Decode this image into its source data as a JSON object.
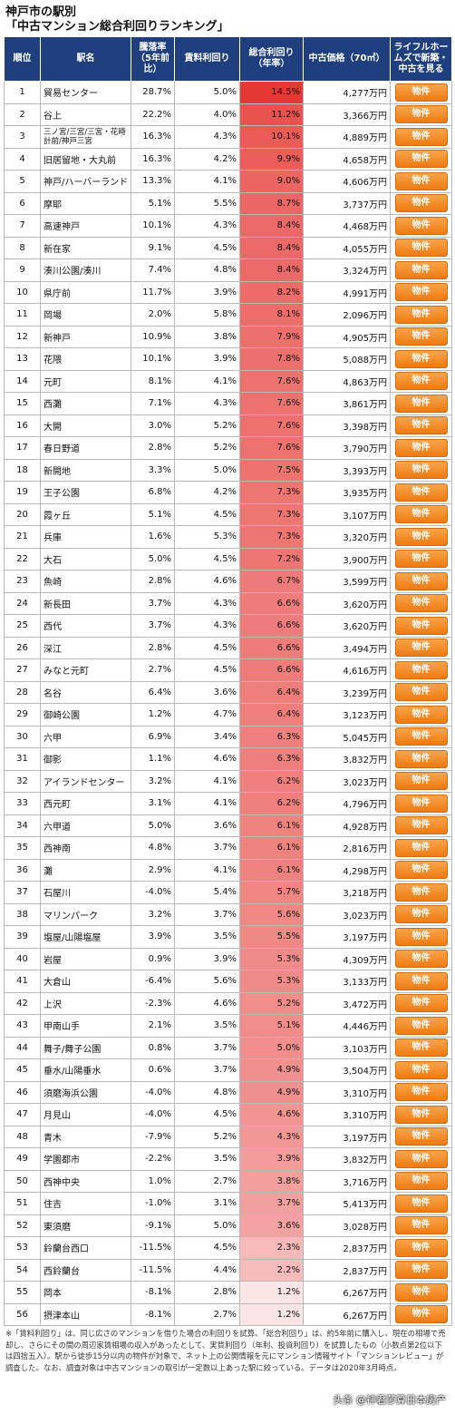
{
  "title": {
    "line1": "神戸市の駅別",
    "line2": "「中古マンション総合利回りランキング」"
  },
  "headers": {
    "rank": "順位",
    "name": "駅名",
    "decline": "騰落率（5年前比）",
    "rent": "賃料利回り",
    "total": "総合利回り（年率）",
    "price": "中古価格（70㎡）",
    "link": "ライフルホームズで新築・中古を見る"
  },
  "button_label": "物件",
  "colors": {
    "header": "#1f3f7e",
    "button": "#ee7a12"
  },
  "rows": [
    {
      "rank": "1",
      "name": "貿易センター",
      "decline": "28.7%",
      "rent": "5.0%",
      "total": "14.5%",
      "price": "4,277万円"
    },
    {
      "rank": "2",
      "name": "谷上",
      "decline": "22.2%",
      "rent": "4.0%",
      "total": "11.2%",
      "price": "3,366万円"
    },
    {
      "rank": "3",
      "name": "三ノ宮/三宮/三宮・花時計前/神戸三宮",
      "decline": "16.3%",
      "rent": "4.3%",
      "total": "10.1%",
      "price": "4,889万円"
    },
    {
      "rank": "4",
      "name": "旧居留地・大丸前",
      "decline": "16.3%",
      "rent": "4.2%",
      "total": "9.9%",
      "price": "4,658万円"
    },
    {
      "rank": "5",
      "name": "神戸/ハーバーランド",
      "decline": "13.3%",
      "rent": "4.1%",
      "total": "9.0%",
      "price": "4,606万円"
    },
    {
      "rank": "6",
      "name": "摩耶",
      "decline": "5.1%",
      "rent": "5.5%",
      "total": "8.7%",
      "price": "3,737万円"
    },
    {
      "rank": "7",
      "name": "高速神戸",
      "decline": "10.1%",
      "rent": "4.3%",
      "total": "8.4%",
      "price": "4,468万円"
    },
    {
      "rank": "8",
      "name": "新在家",
      "decline": "9.1%",
      "rent": "4.5%",
      "total": "8.4%",
      "price": "4,055万円"
    },
    {
      "rank": "9",
      "name": "湊川公園/湊川",
      "decline": "7.4%",
      "rent": "4.8%",
      "total": "8.4%",
      "price": "3,324万円"
    },
    {
      "rank": "10",
      "name": "県庁前",
      "decline": "11.7%",
      "rent": "3.9%",
      "total": "8.2%",
      "price": "4,991万円"
    },
    {
      "rank": "11",
      "name": "岡場",
      "decline": "2.0%",
      "rent": "5.8%",
      "total": "8.1%",
      "price": "2,096万円"
    },
    {
      "rank": "12",
      "name": "新神戸",
      "decline": "10.9%",
      "rent": "3.8%",
      "total": "7.9%",
      "price": "4,905万円"
    },
    {
      "rank": "13",
      "name": "花隈",
      "decline": "10.1%",
      "rent": "3.9%",
      "total": "7.8%",
      "price": "5,088万円"
    },
    {
      "rank": "14",
      "name": "元町",
      "decline": "8.1%",
      "rent": "4.1%",
      "total": "7.6%",
      "price": "4,863万円"
    },
    {
      "rank": "15",
      "name": "西灘",
      "decline": "7.1%",
      "rent": "4.3%",
      "total": "7.6%",
      "price": "3,861万円"
    },
    {
      "rank": "16",
      "name": "大開",
      "decline": "3.0%",
      "rent": "5.2%",
      "total": "7.6%",
      "price": "3,398万円"
    },
    {
      "rank": "17",
      "name": "春日野道",
      "decline": "2.8%",
      "rent": "5.2%",
      "total": "7.6%",
      "price": "3,790万円"
    },
    {
      "rank": "18",
      "name": "新開地",
      "decline": "3.3%",
      "rent": "5.0%",
      "total": "7.5%",
      "price": "3,393万円"
    },
    {
      "rank": "19",
      "name": "王子公園",
      "decline": "6.8%",
      "rent": "4.2%",
      "total": "7.3%",
      "price": "3,935万円"
    },
    {
      "rank": "20",
      "name": "霞ヶ丘",
      "decline": "5.1%",
      "rent": "4.5%",
      "total": "7.3%",
      "price": "3,107万円"
    },
    {
      "rank": "21",
      "name": "兵庫",
      "decline": "1.6%",
      "rent": "5.3%",
      "total": "7.3%",
      "price": "3,320万円"
    },
    {
      "rank": "22",
      "name": "大石",
      "decline": "5.0%",
      "rent": "4.5%",
      "total": "7.2%",
      "price": "3,900万円"
    },
    {
      "rank": "23",
      "name": "魚崎",
      "decline": "2.8%",
      "rent": "4.6%",
      "total": "6.7%",
      "price": "3,599万円"
    },
    {
      "rank": "24",
      "name": "新長田",
      "decline": "3.7%",
      "rent": "4.3%",
      "total": "6.6%",
      "price": "3,620万円"
    },
    {
      "rank": "25",
      "name": "西代",
      "decline": "3.7%",
      "rent": "4.3%",
      "total": "6.6%",
      "price": "3,620万円"
    },
    {
      "rank": "26",
      "name": "深江",
      "decline": "2.8%",
      "rent": "4.5%",
      "total": "6.6%",
      "price": "3,494万円"
    },
    {
      "rank": "27",
      "name": "みなと元町",
      "decline": "2.7%",
      "rent": "4.5%",
      "total": "6.6%",
      "price": "4,616万円"
    },
    {
      "rank": "28",
      "name": "名谷",
      "decline": "6.4%",
      "rent": "3.6%",
      "total": "6.4%",
      "price": "3,239万円"
    },
    {
      "rank": "29",
      "name": "御崎公園",
      "decline": "1.2%",
      "rent": "4.7%",
      "total": "6.4%",
      "price": "3,123万円"
    },
    {
      "rank": "30",
      "name": "六甲",
      "decline": "6.9%",
      "rent": "3.4%",
      "total": "6.3%",
      "price": "5,045万円"
    },
    {
      "rank": "31",
      "name": "御影",
      "decline": "1.1%",
      "rent": "4.6%",
      "total": "6.3%",
      "price": "3,832万円"
    },
    {
      "rank": "32",
      "name": "アイランドセンター",
      "decline": "3.2%",
      "rent": "4.1%",
      "total": "6.2%",
      "price": "3,023万円"
    },
    {
      "rank": "33",
      "name": "西元町",
      "decline": "3.1%",
      "rent": "4.1%",
      "total": "6.2%",
      "price": "4,796万円"
    },
    {
      "rank": "34",
      "name": "六甲道",
      "decline": "5.0%",
      "rent": "3.6%",
      "total": "6.1%",
      "price": "4,928万円"
    },
    {
      "rank": "35",
      "name": "西神南",
      "decline": "4.8%",
      "rent": "3.7%",
      "total": "6.1%",
      "price": "2,816万円"
    },
    {
      "rank": "36",
      "name": "灘",
      "decline": "2.9%",
      "rent": "4.1%",
      "total": "6.1%",
      "price": "4,298万円"
    },
    {
      "rank": "37",
      "name": "石屋川",
      "decline": "-4.0%",
      "rent": "5.4%",
      "total": "5.7%",
      "price": "3,218万円"
    },
    {
      "rank": "38",
      "name": "マリンパーク",
      "decline": "3.2%",
      "rent": "3.7%",
      "total": "5.6%",
      "price": "3,023万円"
    },
    {
      "rank": "39",
      "name": "塩屋/山陽塩屋",
      "decline": "3.9%",
      "rent": "3.5%",
      "total": "5.5%",
      "price": "3,197万円"
    },
    {
      "rank": "40",
      "name": "岩屋",
      "decline": "0.9%",
      "rent": "3.9%",
      "total": "5.3%",
      "price": "4,309万円"
    },
    {
      "rank": "41",
      "name": "大倉山",
      "decline": "-6.4%",
      "rent": "5.6%",
      "total": "5.3%",
      "price": "3,133万円"
    },
    {
      "rank": "42",
      "name": "上沢",
      "decline": "-2.3%",
      "rent": "4.6%",
      "total": "5.2%",
      "price": "3,472万円"
    },
    {
      "rank": "43",
      "name": "甲南山手",
      "decline": "2.1%",
      "rent": "3.5%",
      "total": "5.1%",
      "price": "4,446万円"
    },
    {
      "rank": "44",
      "name": "舞子/舞子公園",
      "decline": "0.8%",
      "rent": "3.7%",
      "total": "5.0%",
      "price": "3,103万円"
    },
    {
      "rank": "45",
      "name": "垂水/山陽垂水",
      "decline": "0.6%",
      "rent": "3.7%",
      "total": "4.9%",
      "price": "3,504万円"
    },
    {
      "rank": "46",
      "name": "須磨海浜公園",
      "decline": "-4.0%",
      "rent": "4.8%",
      "total": "4.9%",
      "price": "3,310万円"
    },
    {
      "rank": "47",
      "name": "月見山",
      "decline": "-4.0%",
      "rent": "4.5%",
      "total": "4.6%",
      "price": "3,310万円"
    },
    {
      "rank": "48",
      "name": "青木",
      "decline": "-7.9%",
      "rent": "5.2%",
      "total": "4.3%",
      "price": "3,197万円"
    },
    {
      "rank": "49",
      "name": "学園都市",
      "decline": "-2.2%",
      "rent": "3.5%",
      "total": "3.9%",
      "price": "3,832万円"
    },
    {
      "rank": "50",
      "name": "西神中央",
      "decline": "1.0%",
      "rent": "2.7%",
      "total": "3.8%",
      "price": "3,716万円"
    },
    {
      "rank": "51",
      "name": "住吉",
      "decline": "-1.0%",
      "rent": "3.1%",
      "total": "3.7%",
      "price": "5,413万円"
    },
    {
      "rank": "52",
      "name": "東須磨",
      "decline": "-9.1%",
      "rent": "5.0%",
      "total": "3.6%",
      "price": "3,028万円"
    },
    {
      "rank": "53",
      "name": "鈴蘭台西口",
      "decline": "-11.5%",
      "rent": "4.5%",
      "total": "2.3%",
      "price": "2,837万円"
    },
    {
      "rank": "54",
      "name": "西鈴蘭台",
      "decline": "-11.5%",
      "rent": "4.4%",
      "total": "2.2%",
      "price": "2,837万円"
    },
    {
      "rank": "55",
      "name": "岡本",
      "decline": "-8.1%",
      "rent": "2.8%",
      "total": "1.2%",
      "price": "6,267万円"
    },
    {
      "rank": "56",
      "name": "摂津本山",
      "decline": "-8.1%",
      "rent": "2.7%",
      "total": "1.2%",
      "price": "6,267万円"
    }
  ],
  "note": "※「賃料利回り」は、同じ広さのマンションを借りた場合の利回りを試算。「総合利回り」は、約5年前に購入し、現在の相場で売却し、さらにその間の周辺家賃相場の収入があったとして、実質利回り（年利、投資利回り）を試算したもの（小数点第2位以下は四捨五入）。駅から徒歩15分以内の物件が対象で、ネット上の公開情報を元にマンション情報サイト「マンションレビュー」が調査した。なお、調査対象は中古マンションの取引が一定数以上あった駅に絞っている。データは2020年3月時点。",
  "watermark": "头条 @神君莎算日本房产"
}
